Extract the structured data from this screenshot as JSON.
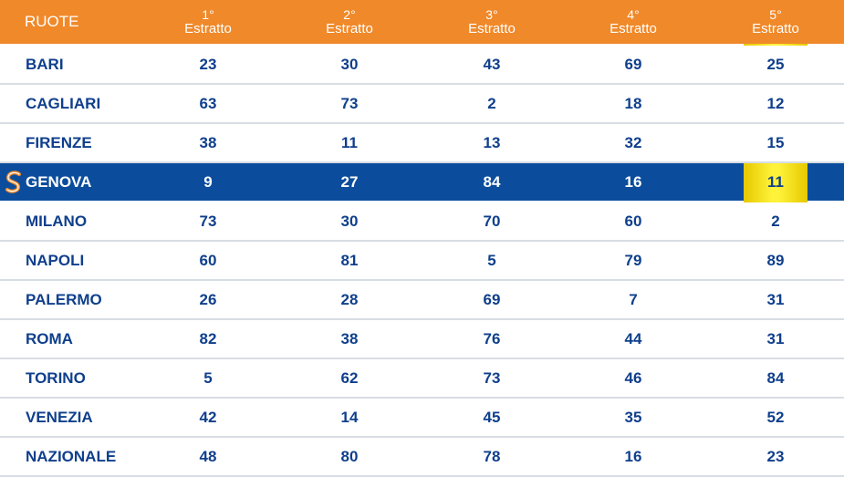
{
  "header": {
    "ruote_label": "RUOTE",
    "columns": [
      {
        "ordinal": "1°",
        "label": "Estratto"
      },
      {
        "ordinal": "2°",
        "label": "Estratto"
      },
      {
        "ordinal": "3°",
        "label": "Estratto"
      },
      {
        "ordinal": "4°",
        "label": "Estratto"
      },
      {
        "ordinal": "5°",
        "label": "Estratto"
      }
    ]
  },
  "rows": [
    {
      "name": "BARI",
      "values": [
        "23",
        "30",
        "43",
        "69",
        "25"
      ]
    },
    {
      "name": "CAGLIARI",
      "values": [
        "63",
        "73",
        "2",
        "18",
        "12"
      ]
    },
    {
      "name": "FIRENZE",
      "values": [
        "38",
        "11",
        "13",
        "32",
        "15"
      ]
    },
    {
      "name": "GENOVA",
      "values": [
        "9",
        "27",
        "84",
        "16",
        "11"
      ],
      "active": true
    },
    {
      "name": "MILANO",
      "values": [
        "73",
        "30",
        "70",
        "60",
        "2"
      ]
    },
    {
      "name": "NAPOLI",
      "values": [
        "60",
        "81",
        "5",
        "79",
        "89"
      ]
    },
    {
      "name": "PALERMO",
      "values": [
        "26",
        "28",
        "69",
        "7",
        "31"
      ]
    },
    {
      "name": "ROMA",
      "values": [
        "82",
        "38",
        "76",
        "44",
        "31"
      ]
    },
    {
      "name": "TORINO",
      "values": [
        "5",
        "62",
        "73",
        "46",
        "84"
      ]
    },
    {
      "name": "VENEZIA",
      "values": [
        "42",
        "14",
        "45",
        "35",
        "52"
      ]
    },
    {
      "name": "NAZIONALE",
      "values": [
        "48",
        "80",
        "78",
        "16",
        "23"
      ]
    }
  ],
  "colors": {
    "header_orange": "#f0892a",
    "text_blue": "#0f3f8c",
    "active_row_blue": "#0b4d9c",
    "highlight_yellow": "#fff23a"
  },
  "icons": {
    "active_row_logo": "s-logo-icon"
  }
}
